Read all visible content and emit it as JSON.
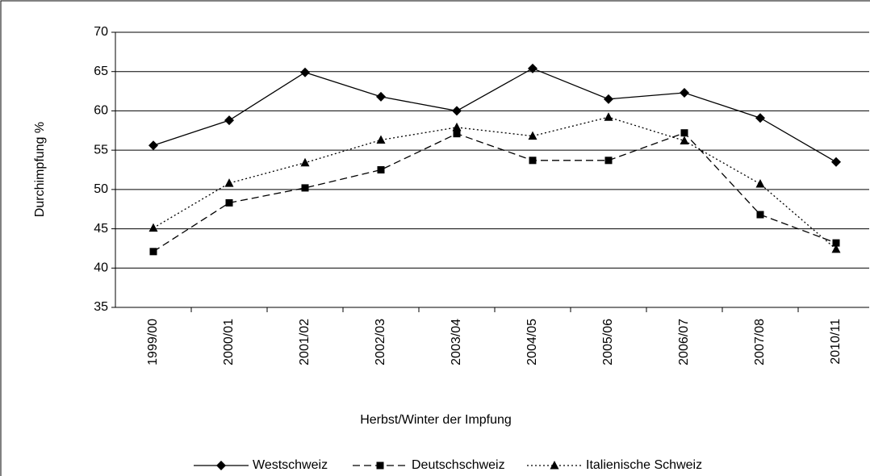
{
  "chart_data": {
    "type": "line",
    "xlabel": "Herbst/Winter der Impfung",
    "ylabel": "Durchimpfung %",
    "categories": [
      "1999/00",
      "2000/01",
      "2001/02",
      "2002/03",
      "2003/04",
      "2004/05",
      "2005/06",
      "2006/07",
      "2007/08",
      "2010/11"
    ],
    "series": [
      {
        "name": "Westschweiz",
        "color": "#000000",
        "marker": "diamond",
        "line_style": "solid",
        "values": [
          55.6,
          58.8,
          64.9,
          61.8,
          60.0,
          65.4,
          61.5,
          62.3,
          59.1,
          53.5
        ]
      },
      {
        "name": "Deutschschweiz",
        "color": "#000000",
        "marker": "square",
        "line_style": "dashed",
        "values": [
          42.1,
          48.3,
          50.2,
          52.5,
          57.1,
          53.7,
          53.7,
          57.2,
          46.8,
          43.2
        ]
      },
      {
        "name": "Italienische Schweiz",
        "color": "#000000",
        "marker": "triangle",
        "line_style": "dotted",
        "values": [
          45.1,
          50.8,
          53.4,
          56.3,
          57.9,
          56.8,
          59.2,
          56.2,
          50.7,
          42.4
        ]
      }
    ],
    "ylim": [
      35,
      70
    ],
    "yticks": [
      35,
      40,
      45,
      50,
      55,
      60,
      65,
      70
    ],
    "grid": true,
    "legend": "bottom"
  }
}
